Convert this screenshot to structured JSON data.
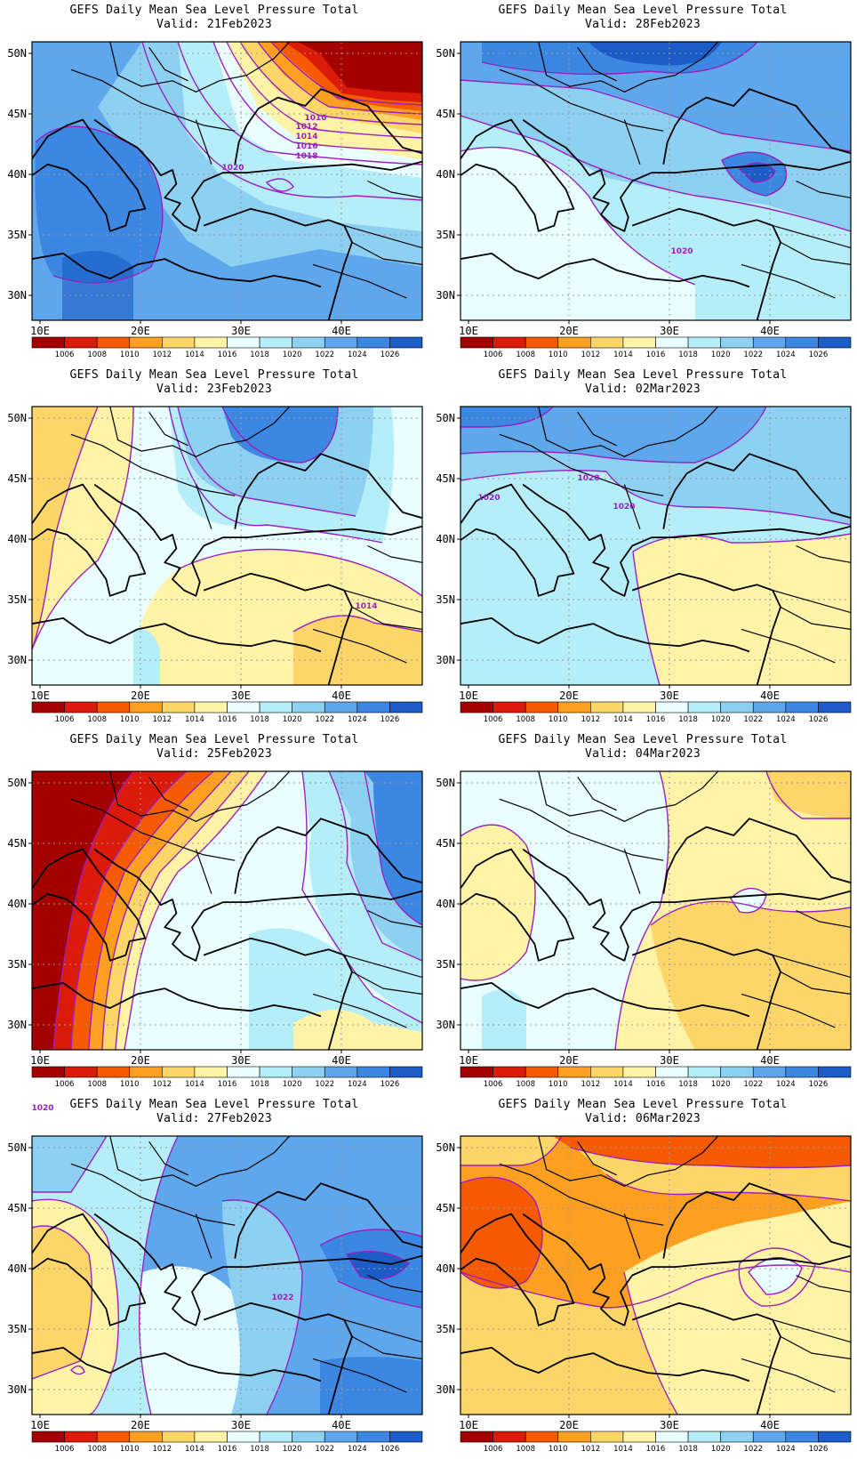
{
  "chart_title": "GEFS Daily Mean Sea Level Pressure Total",
  "valid_prefix": "Valid:",
  "lat_labels": [
    "50N",
    "45N",
    "40N",
    "35N",
    "30N"
  ],
  "lon_labels": [
    "10E",
    "20E",
    "30E",
    "40E"
  ],
  "colorbar": {
    "labels": [
      "1006",
      "1008",
      "1010",
      "1012",
      "1014",
      "1016",
      "1018",
      "1020",
      "1022",
      "1024",
      "1026"
    ],
    "colors": [
      "#a50000",
      "#dc1a0a",
      "#f55a00",
      "#fd9f20",
      "#fdd66a",
      "#fff3a8",
      "#e9ffff",
      "#b5eef8",
      "#8ed0f2",
      "#5fa7ec",
      "#3b87e2",
      "#1b5cc6"
    ]
  },
  "panels": [
    {
      "valid": "21Feb2023",
      "contour_labels": [
        "1010",
        "1012",
        "1014",
        "1016",
        "1018",
        "1020"
      ]
    },
    {
      "valid": "28Feb2023",
      "contour_labels": [
        "1020"
      ]
    },
    {
      "valid": "23Feb2023",
      "contour_labels": [
        "1014"
      ]
    },
    {
      "valid": "02Mar2023",
      "contour_labels": [
        "1020",
        "1020",
        "1020"
      ]
    },
    {
      "valid": "25Feb2023",
      "contour_labels": []
    },
    {
      "valid": "04Mar2023",
      "contour_labels": []
    },
    {
      "valid": "27Feb2023",
      "contour_labels": [
        "1020",
        "1022"
      ]
    },
    {
      "valid": "06Mar2023",
      "contour_labels": []
    }
  ]
}
